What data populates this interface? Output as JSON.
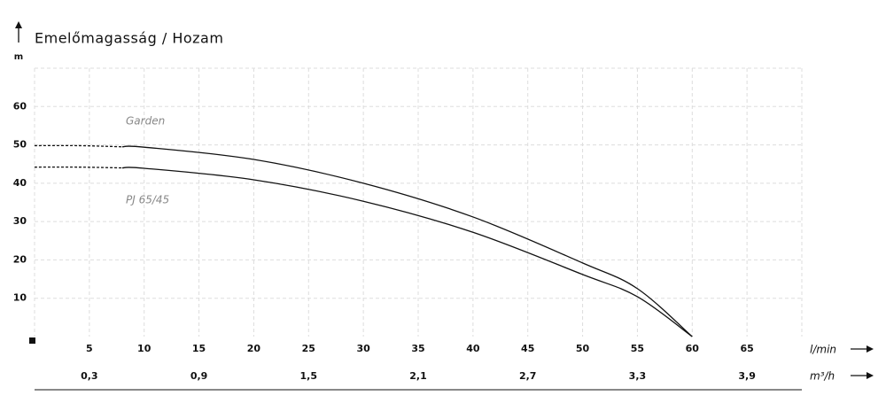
{
  "chart_data": {
    "type": "line",
    "title": "Emelőmagasság / Hozam",
    "y_label": "m",
    "x_label": "l/min",
    "x2_label": "m³/h",
    "x": [
      0,
      4,
      8,
      10,
      20,
      30,
      40,
      50,
      55,
      60
    ],
    "series": [
      {
        "name": "Garden",
        "color": "#111111",
        "dashed_values": [
          49.8,
          49.8,
          49.5,
          null,
          null,
          null,
          null,
          null,
          null,
          null
        ],
        "values": [
          null,
          null,
          49.5,
          49.4,
          46.2,
          40,
          31.2,
          19.2,
          12.5,
          0
        ]
      },
      {
        "name": "PJ 65/45",
        "color": "#111111",
        "dashed_values": [
          44.2,
          44.2,
          44.0,
          null,
          null,
          null,
          null,
          null,
          null,
          null
        ],
        "values": [
          null,
          null,
          44.0,
          43.9,
          40.9,
          35.3,
          27.2,
          16.2,
          10.4,
          0
        ]
      }
    ],
    "xlim": [
      0,
      70
    ],
    "xticks": [
      5,
      10,
      15,
      20,
      25,
      30,
      35,
      40,
      45,
      50,
      55,
      60,
      65
    ],
    "x2lim": [
      0,
      4.2
    ],
    "x2ticks": [
      {
        "value": 0.3,
        "label": "0,3"
      },
      {
        "value": 0.9,
        "label": "0,9"
      },
      {
        "value": 1.5,
        "label": "1,5"
      },
      {
        "value": 2.1,
        "label": "2,1"
      },
      {
        "value": 2.7,
        "label": "2,7"
      },
      {
        "value": 3.3,
        "label": "3,3"
      },
      {
        "value": 3.9,
        "label": "3,9"
      }
    ],
    "ylim": [
      0,
      70
    ],
    "yticks": [
      10,
      20,
      30,
      40,
      50,
      60
    ],
    "grid": true
  }
}
